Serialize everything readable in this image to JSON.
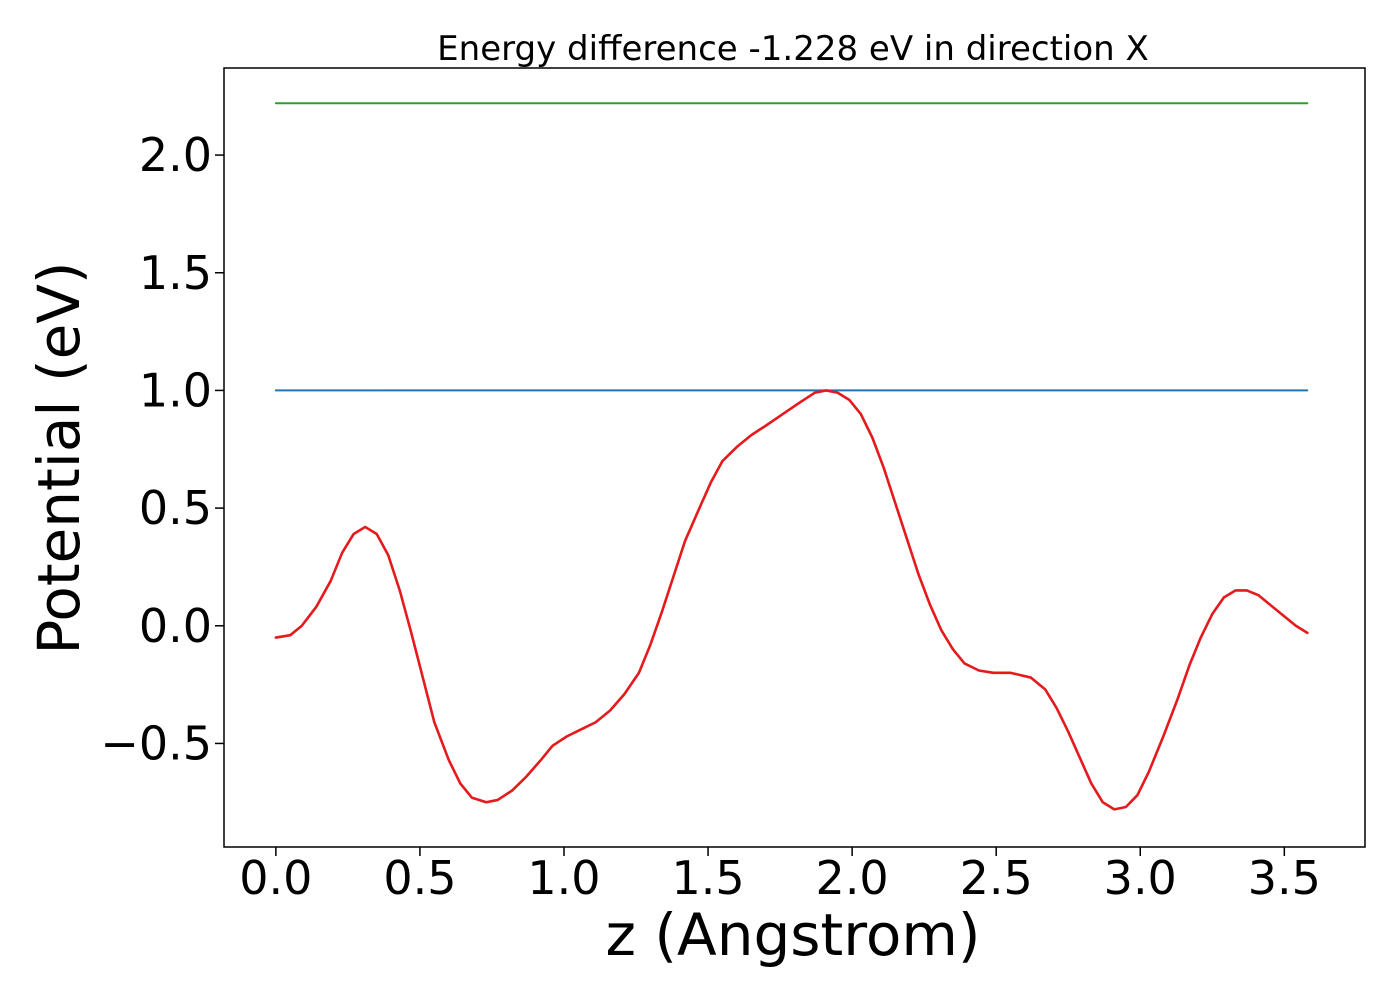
{
  "chart_data": {
    "type": "line",
    "title": "Energy difference -1.228 eV in direction X",
    "xlabel": "z (Angstrom)",
    "ylabel": "Potential (eV)",
    "xlim": [
      -0.18,
      3.78
    ],
    "ylim": [
      -0.94,
      2.37
    ],
    "x_ticks": [
      0.0,
      0.5,
      1.0,
      1.5,
      2.0,
      2.5,
      3.0,
      3.5
    ],
    "x_tick_labels": [
      "0.0",
      "0.5",
      "1.0",
      "1.5",
      "2.0",
      "2.5",
      "3.0",
      "3.5"
    ],
    "y_ticks": [
      -0.5,
      0.0,
      0.5,
      1.0,
      1.5,
      2.0
    ],
    "y_tick_labels": [
      "−0.5",
      "0.0",
      "0.5",
      "1.0",
      "1.5",
      "2.0"
    ],
    "grid": false,
    "series": [
      {
        "color": "#2ca02c",
        "x": [
          0.0,
          3.58
        ],
        "y": [
          2.22,
          2.22
        ]
      },
      {
        "color": "#1f77b4",
        "x": [
          0.0,
          3.58
        ],
        "y": [
          1.0,
          1.0
        ]
      },
      {
        "color": "#e41a1c",
        "x": [
          0.0,
          0.05,
          0.09,
          0.14,
          0.19,
          0.23,
          0.27,
          0.31,
          0.35,
          0.39,
          0.43,
          0.47,
          0.51,
          0.55,
          0.6,
          0.64,
          0.68,
          0.73,
          0.77,
          0.82,
          0.87,
          0.92,
          0.96,
          1.01,
          1.06,
          1.11,
          1.16,
          1.21,
          1.26,
          1.3,
          1.34,
          1.38,
          1.42,
          1.47,
          1.51,
          1.55,
          1.6,
          1.65,
          1.7,
          1.76,
          1.82,
          1.87,
          1.91,
          1.95,
          1.99,
          2.03,
          2.07,
          2.11,
          2.15,
          2.19,
          2.23,
          2.27,
          2.31,
          2.35,
          2.39,
          2.44,
          2.49,
          2.55,
          2.62,
          2.67,
          2.71,
          2.75,
          2.79,
          2.83,
          2.87,
          2.91,
          2.95,
          2.99,
          3.03,
          3.08,
          3.13,
          3.17,
          3.21,
          3.25,
          3.29,
          3.33,
          3.37,
          3.41,
          3.45,
          3.5,
          3.54,
          3.58
        ],
        "y": [
          -0.05,
          -0.04,
          0.0,
          0.08,
          0.19,
          0.31,
          0.39,
          0.42,
          0.39,
          0.3,
          0.15,
          -0.03,
          -0.22,
          -0.41,
          -0.57,
          -0.67,
          -0.73,
          -0.75,
          -0.74,
          -0.7,
          -0.64,
          -0.57,
          -0.51,
          -0.47,
          -0.44,
          -0.41,
          -0.36,
          -0.29,
          -0.2,
          -0.08,
          0.06,
          0.21,
          0.36,
          0.5,
          0.61,
          0.7,
          0.76,
          0.81,
          0.85,
          0.9,
          0.95,
          0.99,
          1.0,
          0.99,
          0.96,
          0.9,
          0.8,
          0.67,
          0.52,
          0.37,
          0.22,
          0.09,
          -0.02,
          -0.1,
          -0.16,
          -0.19,
          -0.2,
          -0.2,
          -0.22,
          -0.27,
          -0.35,
          -0.45,
          -0.56,
          -0.67,
          -0.75,
          -0.78,
          -0.77,
          -0.72,
          -0.62,
          -0.47,
          -0.31,
          -0.17,
          -0.05,
          0.05,
          0.12,
          0.15,
          0.15,
          0.13,
          0.09,
          0.04,
          0.0,
          -0.03
        ]
      }
    ]
  }
}
